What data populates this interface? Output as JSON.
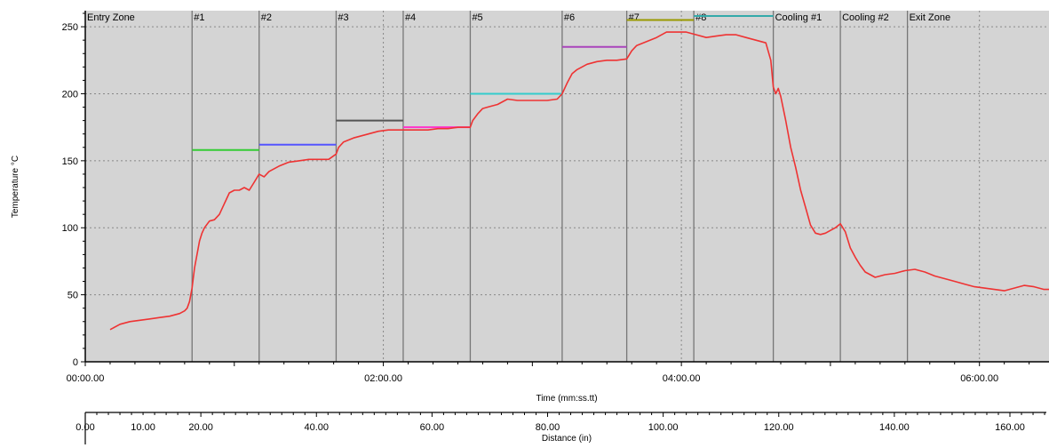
{
  "chart_data": {
    "type": "line",
    "ylabel": "Temperature °C",
    "xlabel": "Time (mm:ss.tt)",
    "x2label": "Distance (in)",
    "xlim": [
      0,
      388
    ],
    "ylim": [
      0,
      262
    ],
    "x_ticks": [
      {
        "value": 0,
        "label": "00:00.00"
      },
      {
        "value": 120,
        "label": "02:00.00"
      },
      {
        "value": 240,
        "label": "04:00.00"
      },
      {
        "value": 360,
        "label": "06:00.00"
      }
    ],
    "y_ticks": [
      0,
      50,
      100,
      150,
      200,
      250
    ],
    "distance_ticks": [
      {
        "value": 0,
        "label": "0.00"
      },
      {
        "value": 10,
        "label": "10.00"
      },
      {
        "value": 20,
        "label": "20.00"
      },
      {
        "value": 40,
        "label": "40.00"
      },
      {
        "value": 60,
        "label": "60.00"
      },
      {
        "value": 80,
        "label": "80.00"
      },
      {
        "value": 100,
        "label": "100.00"
      },
      {
        "value": 120,
        "label": "120.00"
      },
      {
        "value": 140,
        "label": "140.00"
      },
      {
        "value": 160,
        "label": "160.00"
      }
    ],
    "distance_max": 166.3,
    "grid": true,
    "zone_boundaries": [
      0,
      43,
      70,
      101,
      128,
      155,
      192,
      218,
      245,
      277,
      304,
      331,
      388
    ],
    "zones": [
      "Entry Zone",
      "#1",
      "#2",
      "#3",
      "#4",
      "#5",
      "#6",
      "#7",
      "#8",
      "Cooling #1",
      "Cooling #2",
      "Exit Zone"
    ],
    "setpoints": [
      {
        "zone": "#1",
        "x": [
          43,
          70
        ],
        "y": 158,
        "color": "#33cc33"
      },
      {
        "zone": "#2",
        "x": [
          70,
          101
        ],
        "y": 162,
        "color": "#5555ff"
      },
      {
        "zone": "#3",
        "x": [
          101,
          128
        ],
        "y": 180,
        "color": "#555555"
      },
      {
        "zone": "#4",
        "x": [
          128,
          155
        ],
        "y": 175,
        "color": "#ff33cc"
      },
      {
        "zone": "#5",
        "x": [
          155,
          192
        ],
        "y": 200,
        "color": "#33cccc"
      },
      {
        "zone": "#6",
        "x": [
          192,
          218
        ],
        "y": 235,
        "color": "#aa44bb"
      },
      {
        "zone": "#7",
        "x": [
          218,
          245
        ],
        "y": 255,
        "color": "#999900"
      },
      {
        "zone": "#8",
        "x": [
          245,
          277
        ],
        "y": 258,
        "color": "#33aaaa"
      }
    ],
    "series": [
      {
        "color": "#ee3333",
        "x": [
          10,
          14,
          18,
          22,
          26,
          30,
          34,
          38,
          40,
          41,
          42,
          43,
          44,
          45,
          46,
          47,
          48,
          50,
          52,
          54,
          56,
          58,
          60,
          62,
          64,
          66,
          68,
          70,
          72,
          74,
          78,
          82,
          86,
          90,
          94,
          98,
          101,
          102,
          104,
          108,
          110,
          114,
          118,
          122,
          126,
          130,
          134,
          138,
          142,
          146,
          150,
          155,
          156,
          158,
          160,
          162,
          166,
          170,
          174,
          178,
          182,
          186,
          190,
          192,
          194,
          196,
          198,
          200,
          202,
          206,
          210,
          214,
          218,
          220,
          222,
          226,
          230,
          234,
          238,
          242,
          246,
          250,
          254,
          258,
          262,
          266,
          270,
          274,
          276,
          277,
          278,
          279,
          280,
          282,
          284,
          286,
          288,
          290,
          292,
          294,
          296,
          298,
          302,
          304,
          306,
          308,
          310,
          312,
          314,
          318,
          322,
          326,
          330,
          334,
          338,
          342,
          346,
          350,
          354,
          358,
          362,
          366,
          370,
          374,
          378,
          382,
          386,
          388
        ],
        "y": [
          24,
          28,
          30,
          31,
          32,
          33,
          34,
          36,
          38,
          40,
          45,
          55,
          70,
          80,
          90,
          96,
          100,
          105,
          106,
          110,
          118,
          126,
          128,
          128,
          130,
          128,
          134,
          140,
          138,
          142,
          146,
          149,
          150,
          151,
          151,
          151,
          155,
          160,
          164,
          167,
          168,
          170,
          172,
          173,
          173,
          173,
          173,
          173,
          174,
          174,
          175,
          175,
          180,
          185,
          189,
          190,
          192,
          196,
          195,
          195,
          195,
          195,
          196,
          200,
          208,
          215,
          218,
          220,
          222,
          224,
          225,
          225,
          226,
          232,
          236,
          239,
          242,
          246,
          246,
          246,
          244,
          242,
          243,
          244,
          244,
          242,
          240,
          238,
          225,
          205,
          200,
          204,
          198,
          180,
          160,
          145,
          128,
          115,
          102,
          96,
          95,
          96,
          100,
          103,
          97,
          85,
          78,
          72,
          67,
          63,
          65,
          66,
          68,
          69,
          67,
          64,
          62,
          60,
          58,
          56,
          55,
          54,
          53,
          55,
          57,
          56,
          54,
          54
        ]
      }
    ]
  }
}
